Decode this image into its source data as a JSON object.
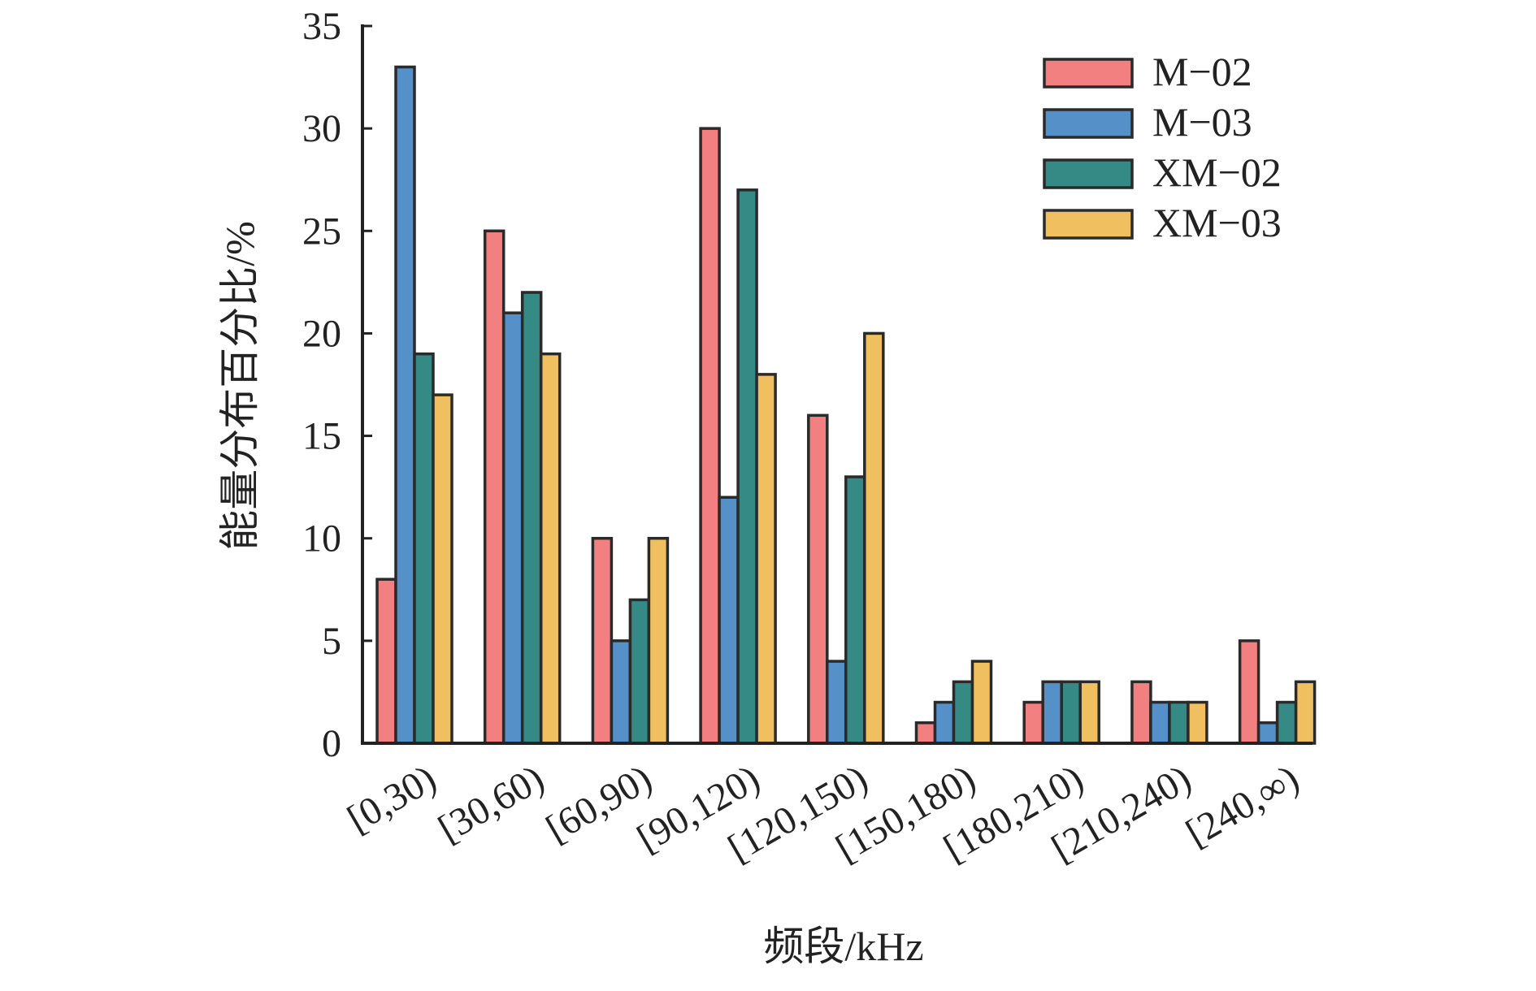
{
  "chart_data": {
    "type": "bar",
    "title": "",
    "xlabel": "频段/kHz",
    "ylabel": "能量分布百分比/%",
    "ylim": [
      0,
      35
    ],
    "yticks": [
      0,
      5,
      10,
      15,
      20,
      25,
      30,
      35
    ],
    "grid": false,
    "legend_position": "top-right",
    "categories": [
      "[0,30)",
      "[30,60)",
      "[60,90)",
      "[90,120)",
      "[120,150)",
      "[150,180)",
      "[180,210)",
      "[210,240)",
      "[240,∞)"
    ],
    "series": [
      {
        "name": "M−02",
        "color": "#f28080",
        "values": [
          8,
          25,
          10,
          30,
          16,
          1,
          2,
          3,
          5
        ]
      },
      {
        "name": "M−03",
        "color": "#5590c8",
        "values": [
          33,
          21,
          5,
          12,
          4,
          2,
          3,
          2,
          1
        ]
      },
      {
        "name": "XM−02",
        "color": "#358a86",
        "values": [
          19,
          22,
          7,
          27,
          13,
          3,
          3,
          2,
          2
        ]
      },
      {
        "name": "XM−03",
        "color": "#f0c060",
        "values": [
          17,
          19,
          10,
          18,
          20,
          4,
          3,
          2,
          3
        ]
      }
    ]
  }
}
